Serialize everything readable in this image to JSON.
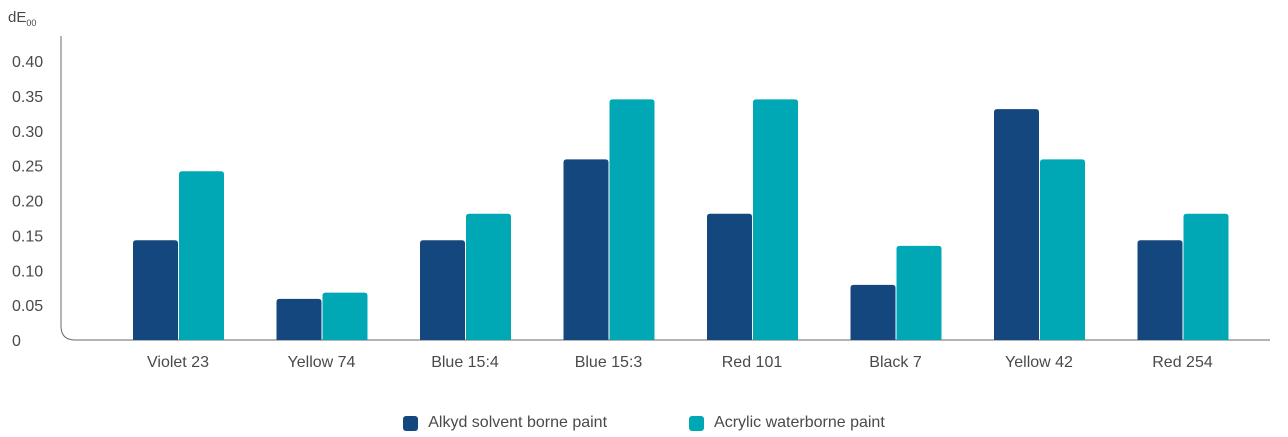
{
  "chart_data": {
    "type": "bar",
    "ylabel_main": "dE",
    "ylabel_sub": "00",
    "ylim": [
      0,
      0.42
    ],
    "yticks": [
      "0",
      "0.05",
      "0.10",
      "0.15",
      "0.20",
      "0.25",
      "0.30",
      "0.35",
      "0.40"
    ],
    "ytick_values": [
      0,
      0.05,
      0.1,
      0.15,
      0.2,
      0.25,
      0.3,
      0.35,
      0.4
    ],
    "categories": [
      "Violet 23",
      "Yellow 74",
      "Blue 15:4",
      "Blue 15:3",
      "Red 101",
      "Black 7",
      "Yellow 42",
      "Red 254"
    ],
    "series": [
      {
        "name": "Alkyd solvent borne paint",
        "color": "#14477e",
        "values": [
          0.143,
          0.059,
          0.143,
          0.259,
          0.181,
          0.079,
          0.331,
          0.143
        ]
      },
      {
        "name": "Acrylic waterborne paint",
        "color": "#00a8b5",
        "values": [
          0.242,
          0.068,
          0.181,
          0.345,
          0.345,
          0.135,
          0.259,
          0.181
        ]
      }
    ],
    "grid": false,
    "legend_position": "bottom"
  }
}
